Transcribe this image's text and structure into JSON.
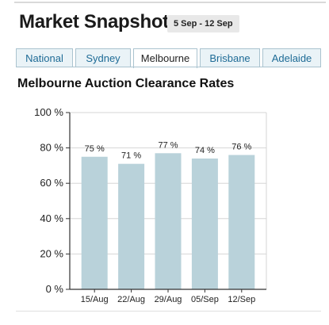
{
  "header": {
    "title": "Market Snapshot",
    "date_range": "5 Sep - 12 Sep"
  },
  "tabs": [
    {
      "label": "National",
      "active": false
    },
    {
      "label": "Sydney",
      "active": false
    },
    {
      "label": "Melbourne",
      "active": true
    },
    {
      "label": "Brisbane",
      "active": false
    },
    {
      "label": "Adelaide",
      "active": false
    }
  ],
  "colors": {
    "bar": "#b9d2da",
    "tab_text": "#1e6b96",
    "tab_border": "#aac3cf",
    "tab_bg": "#eaf3f7"
  },
  "chart_data": {
    "type": "bar",
    "title": "Melbourne Auction Clearance Rates",
    "categories": [
      "15/Aug",
      "22/Aug",
      "29/Aug",
      "05/Sep",
      "12/Sep"
    ],
    "values": [
      75,
      71,
      77,
      74,
      76
    ],
    "value_labels": [
      "75 %",
      "71 %",
      "77 %",
      "74 %",
      "76 %"
    ],
    "y_ticks": [
      0,
      20,
      40,
      60,
      80,
      100
    ],
    "y_tick_labels": [
      "0 %",
      "20 %",
      "40 %",
      "60 %",
      "80 %",
      "100 %"
    ],
    "ylim": [
      0,
      100
    ],
    "xlabel": "",
    "ylabel": "",
    "grid": true
  }
}
